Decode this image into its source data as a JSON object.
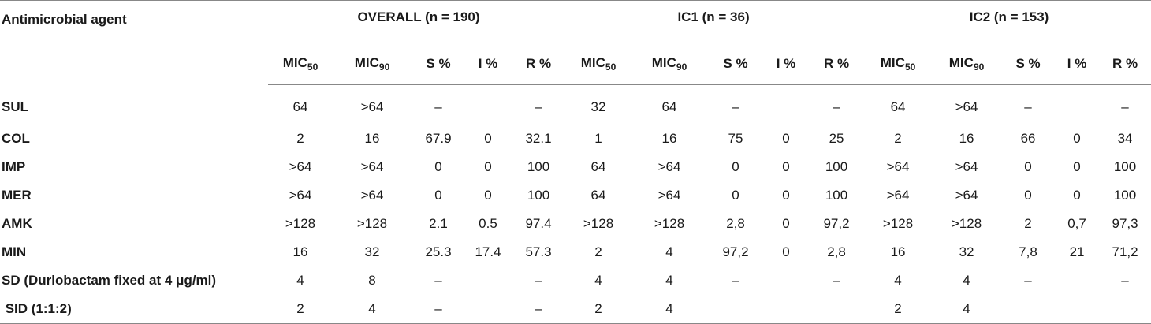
{
  "table": {
    "agent_header": "Antimicrobial agent",
    "groups": [
      "OVERALL (n = 190)",
      "IC1 (n = 36)",
      "IC2 (n = 153)"
    ],
    "subheaders": {
      "mic50_base": "MIC",
      "mic50_sub": "50",
      "mic90_base": "MIC",
      "mic90_sub": "90",
      "s": "S %",
      "i": "I %",
      "r": "R %"
    },
    "rows": [
      {
        "agent": "SUL",
        "cells": [
          "64",
          ">64",
          "–",
          "",
          "–",
          "32",
          "64",
          "–",
          "",
          "–",
          "64",
          ">64",
          "–",
          "",
          "–"
        ]
      },
      {
        "agent": "COL",
        "cells": [
          "2",
          "16",
          "67.9",
          "0",
          "32.1",
          "1",
          "16",
          "75",
          "0",
          "25",
          "2",
          "16",
          "66",
          "0",
          "34"
        ]
      },
      {
        "agent": "IMP",
        "cells": [
          ">64",
          ">64",
          "0",
          "0",
          "100",
          "64",
          ">64",
          "0",
          "0",
          "100",
          ">64",
          ">64",
          "0",
          "0",
          "100"
        ]
      },
      {
        "agent": "MER",
        "cells": [
          ">64",
          ">64",
          "0",
          "0",
          "100",
          "64",
          ">64",
          "0",
          "0",
          "100",
          ">64",
          ">64",
          "0",
          "0",
          "100"
        ]
      },
      {
        "agent": "AMK",
        "cells": [
          ">128",
          ">128",
          "2.1",
          "0.5",
          "97.4",
          ">128",
          ">128",
          "2,8",
          "0",
          "97,2",
          ">128",
          ">128",
          "2",
          "0,7",
          "97,3"
        ]
      },
      {
        "agent": "MIN",
        "cells": [
          "16",
          "32",
          "25.3",
          "17.4",
          "57.3",
          "2",
          "4",
          "97,2",
          "0",
          "2,8",
          "16",
          "32",
          "7,8",
          "21",
          "71,2"
        ]
      },
      {
        "agent": "SD (Durlobactam fixed at 4 μg/ml)",
        "cells": [
          "4",
          "8",
          "–",
          "",
          "–",
          "4",
          "4",
          "–",
          "",
          "–",
          "4",
          "4",
          "–",
          "",
          "–"
        ]
      },
      {
        "agent": " SID (1:1:2)",
        "cells": [
          "2",
          "4",
          "–",
          "",
          "–",
          "2",
          "4",
          "",
          "",
          "",
          "2",
          "4",
          "",
          "",
          ""
        ]
      }
    ]
  }
}
